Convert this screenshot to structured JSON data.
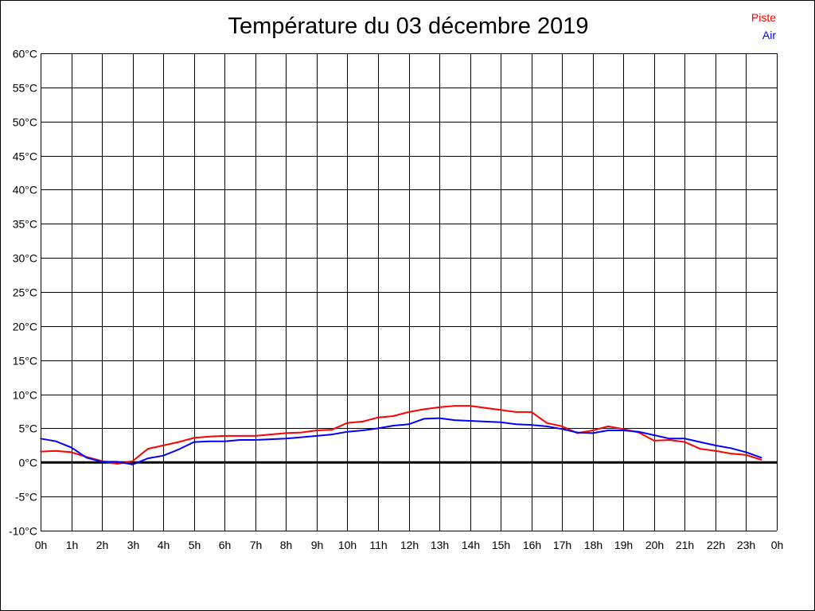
{
  "chart_data": {
    "type": "line",
    "title": "Température du 03 décembre 2019",
    "xlabel": "",
    "ylabel": "",
    "ylim": [
      -10,
      60
    ],
    "xlim": [
      0,
      24
    ],
    "grid": true,
    "legend_placement": "top-right",
    "y_ticks": [
      "60°C",
      "55°C",
      "50°C",
      "45°C",
      "40°C",
      "35°C",
      "30°C",
      "25°C",
      "20°C",
      "15°C",
      "10°C",
      "5°C",
      "0°C",
      "-5°C",
      "-10°C"
    ],
    "y_tick_values": [
      60,
      55,
      50,
      45,
      40,
      35,
      30,
      25,
      20,
      15,
      10,
      5,
      0,
      -5,
      -10
    ],
    "x_ticks": [
      "0h",
      "1h",
      "2h",
      "3h",
      "4h",
      "5h",
      "6h",
      "7h",
      "8h",
      "9h",
      "10h",
      "11h",
      "12h",
      "13h",
      "14h",
      "15h",
      "16h",
      "17h",
      "18h",
      "19h",
      "20h",
      "21h",
      "22h",
      "23h",
      "0h"
    ],
    "x": [
      0,
      0.5,
      1,
      1.5,
      2,
      2.5,
      3,
      3.5,
      4,
      4.5,
      5,
      5.5,
      6,
      6.5,
      7,
      7.5,
      8,
      8.5,
      9,
      9.5,
      10,
      10.5,
      11,
      11.5,
      12,
      12.5,
      13,
      13.5,
      14,
      14.5,
      15,
      15.5,
      16,
      16.5,
      17,
      17.5,
      18,
      18.5,
      19,
      19.5,
      20,
      20.5,
      21,
      21.5,
      22,
      22.5,
      23,
      23.5
    ],
    "series": [
      {
        "name": "Piste",
        "color": "#ff0000",
        "values": [
          1.6,
          1.7,
          1.5,
          0.8,
          0.2,
          -0.2,
          0.2,
          2.0,
          2.5,
          3.0,
          3.6,
          3.8,
          3.9,
          3.9,
          3.9,
          4.1,
          4.3,
          4.4,
          4.7,
          4.8,
          5.8,
          6.0,
          6.6,
          6.8,
          7.4,
          7.8,
          8.1,
          8.3,
          8.3,
          8.0,
          7.7,
          7.4,
          7.4,
          5.8,
          5.3,
          4.3,
          4.7,
          5.3,
          4.9,
          4.4,
          3.2,
          3.3,
          3.0,
          2.0,
          1.7,
          1.3,
          1.1,
          0.4
        ]
      },
      {
        "name": "Air",
        "color": "#0000ff",
        "values": [
          3.5,
          3.1,
          2.2,
          0.7,
          0.1,
          0.1,
          -0.3,
          0.6,
          1.0,
          1.9,
          3.0,
          3.1,
          3.1,
          3.3,
          3.3,
          3.4,
          3.5,
          3.7,
          3.9,
          4.1,
          4.5,
          4.7,
          5.0,
          5.4,
          5.6,
          6.4,
          6.5,
          6.2,
          6.1,
          6.0,
          5.9,
          5.6,
          5.5,
          5.3,
          4.9,
          4.4,
          4.3,
          4.7,
          4.7,
          4.5,
          4.0,
          3.5,
          3.5,
          3.0,
          2.5,
          2.1,
          1.5,
          0.7
        ]
      }
    ]
  }
}
